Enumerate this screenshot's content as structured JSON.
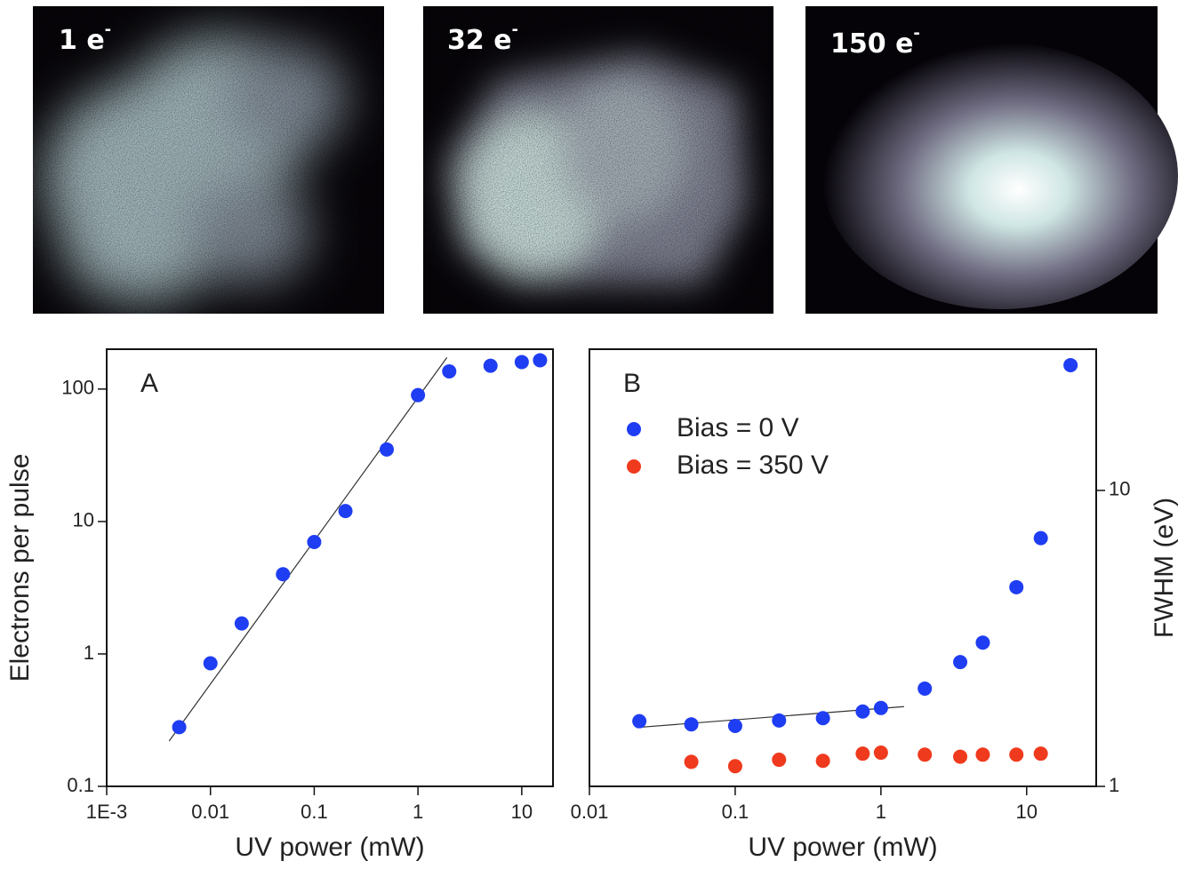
{
  "images": [
    {
      "label": "1 e",
      "superscript": "-"
    },
    {
      "label": "32 e",
      "superscript": "-"
    },
    {
      "label": "150 e",
      "superscript": "-"
    }
  ],
  "chart_data": [
    {
      "type": "scatter",
      "panel": "A",
      "xlabel": "UV power (mW)",
      "ylabel": "Electrons per pulse",
      "xlog": true,
      "ylog": true,
      "color": "#1f3df2",
      "x": [
        0.005,
        0.01,
        0.02,
        0.05,
        0.1,
        0.2,
        0.5,
        1,
        2,
        5,
        10,
        15
      ],
      "values": [
        0.28,
        0.85,
        1.7,
        4,
        7,
        12,
        35,
        90,
        136,
        150,
        160,
        165
      ],
      "fit": {
        "x": [
          0.004,
          1.9
        ],
        "values": [
          0.22,
          173
        ]
      },
      "xlim": [
        0.001,
        20
      ],
      "xticks": [
        {
          "value": 0.001,
          "label": "1E-3"
        },
        0.01,
        0.1,
        1,
        10
      ],
      "ylim": [
        0.1,
        200
      ],
      "yticks": [
        0.1,
        1,
        10,
        100
      ]
    },
    {
      "type": "scatter",
      "panel": "B",
      "xlabel": "UV power (mW)",
      "y2label": "FWHM (eV)",
      "xlog": true,
      "ylog": true,
      "legend": "upper left",
      "series": [
        {
          "name": "Bias = 0 V",
          "color": "#1f3df2",
          "axis": "y2",
          "x": [
            0.022,
            0.05,
            0.1,
            0.2,
            0.4,
            0.75,
            1,
            2,
            3.5,
            5,
            8.5,
            12.5,
            20
          ],
          "values": [
            1.66,
            1.62,
            1.6,
            1.67,
            1.7,
            1.79,
            1.84,
            2.14,
            2.63,
            3.06,
            4.71,
            6.9,
            26.5
          ]
        },
        {
          "name": "Bias = 350 V",
          "color": "#f03a1e",
          "axis": "y2",
          "x": [
            0.05,
            0.1,
            0.2,
            0.4,
            0.75,
            1,
            2,
            3.5,
            5,
            8.5,
            12.5
          ],
          "values": [
            1.21,
            1.17,
            1.23,
            1.22,
            1.29,
            1.3,
            1.28,
            1.26,
            1.28,
            1.28,
            1.29
          ]
        }
      ],
      "fit": {
        "x": [
          0.021,
          1.44
        ],
        "values": [
          1.58,
          1.86
        ]
      },
      "xlim": [
        0.01,
        30
      ],
      "xticks": [
        0.01,
        0.1,
        1,
        10
      ],
      "y2lim": [
        1,
        30
      ],
      "y2ticks": [
        1,
        10
      ]
    }
  ]
}
